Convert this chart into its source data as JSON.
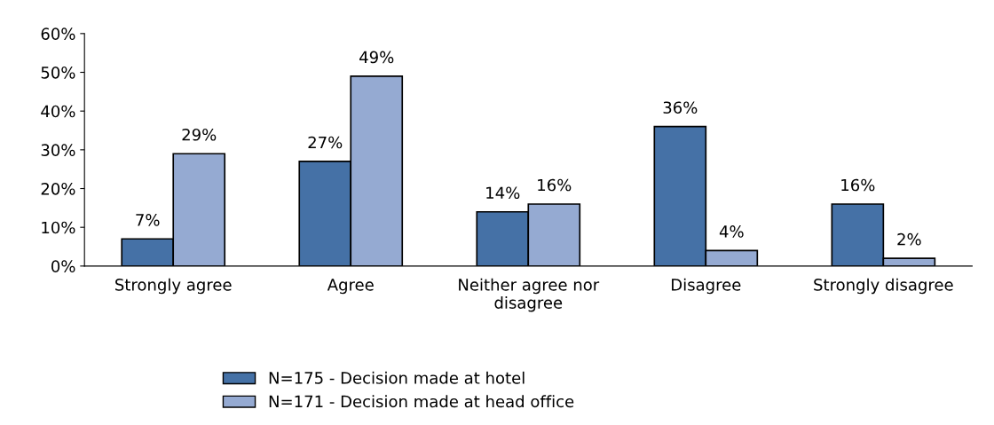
{
  "chart_data": {
    "type": "bar",
    "categories": [
      "Strongly agree",
      "Agree",
      "Neither agree nor\ndisagree",
      "Disagree",
      "Strongly disagree"
    ],
    "series": [
      {
        "name": "N=175 - Decision made at hotel",
        "color": "#4571a6",
        "values": [
          7,
          27,
          14,
          36,
          16
        ],
        "value_labels": [
          "7%",
          "27%",
          "14%",
          "36%",
          "16%"
        ]
      },
      {
        "name": "N=171 - Decision made at head office",
        "color": "#95aad2",
        "values": [
          29,
          49,
          16,
          4,
          2
        ],
        "value_labels": [
          "29%",
          "49%",
          "16%",
          "4%",
          "2%"
        ]
      }
    ],
    "ylim": [
      0,
      60
    ],
    "yticks": [
      {
        "value": 0,
        "label": "0%"
      },
      {
        "value": 10,
        "label": "10%"
      },
      {
        "value": 20,
        "label": "20%"
      },
      {
        "value": 30,
        "label": "30%"
      },
      {
        "value": 40,
        "label": "40%"
      },
      {
        "value": 50,
        "label": "50%"
      },
      {
        "value": 60,
        "label": "60%"
      }
    ],
    "grid": false,
    "legend": "bottom"
  }
}
